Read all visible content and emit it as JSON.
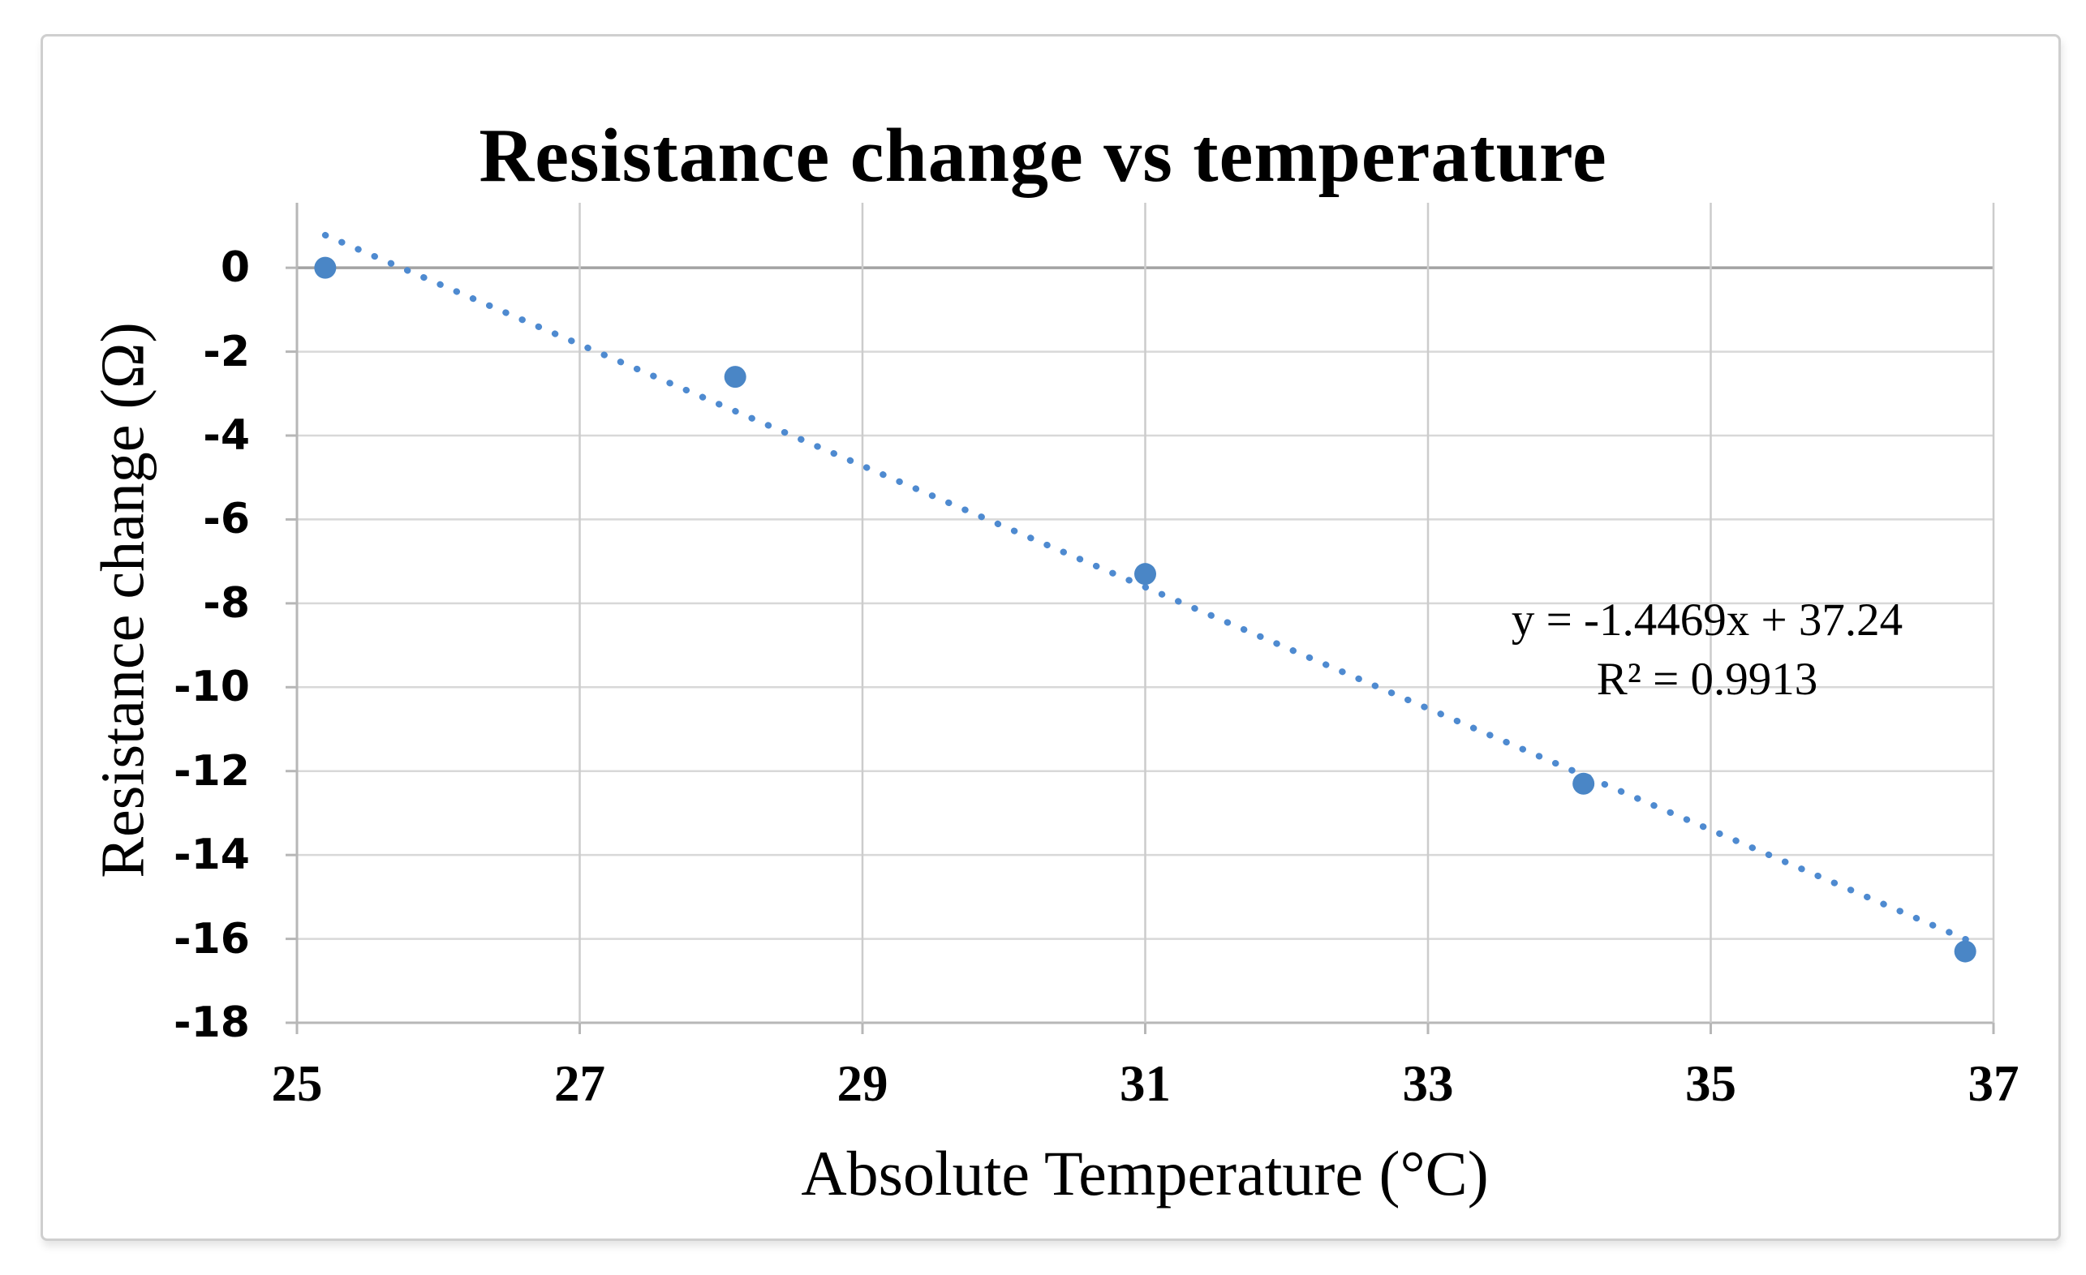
{
  "frame": {
    "background": "#ffffff",
    "border_color": "#cfcfcf"
  },
  "chart_data": {
    "type": "scatter",
    "title": "Resistance change vs temperature",
    "xlabel": "Absolute Temperature (°C)",
    "ylabel": "Resistance change (Ω)",
    "x_ticks": [
      "25",
      "27",
      "29",
      "31",
      "33",
      "35",
      "37"
    ],
    "y_ticks": [
      "0",
      "-2",
      "-4",
      "-6",
      "-8",
      "-10",
      "-12",
      "-14",
      "-16",
      "-18"
    ],
    "xlim": [
      25,
      37
    ],
    "ylim": [
      -18,
      1.55
    ],
    "grid": true,
    "legend": "none",
    "points": [
      [
        25.2,
        0
      ],
      [
        28.1,
        -2.6
      ],
      [
        31.0,
        -7.3
      ],
      [
        34.1,
        -12.3
      ],
      [
        36.8,
        -16.3
      ]
    ],
    "trendline": {
      "slope": -1.4469,
      "intercept": 37.24,
      "x_start": 25.2,
      "x_end": 36.85,
      "style": "dotted",
      "equation_label": "y = -1.4469x + 37.24",
      "r_squared_label": "R² = 0.9913"
    },
    "colors": {
      "marker": "#4a86c6",
      "trendline": "#4e8ad0",
      "gridline": "#d8d8d8",
      "vertical_gridline": "#cccccc",
      "zero_line": "#a3a3a3",
      "axis_line": "#b7b7b7",
      "text": "#000000"
    }
  }
}
